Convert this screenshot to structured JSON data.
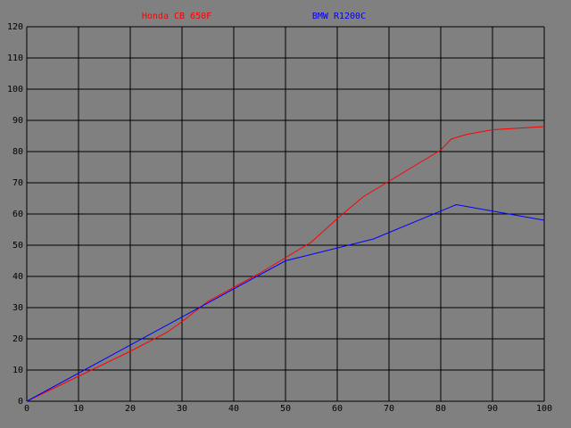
{
  "chart_data": {
    "type": "line",
    "series": [
      {
        "name": "Honda CB 650F",
        "color": "#ff0000",
        "x": [
          0,
          10,
          20,
          27,
          30,
          35,
          40,
          45,
          50,
          55,
          60,
          65,
          70,
          75,
          80,
          82,
          85,
          90,
          95,
          100
        ],
        "values": [
          0,
          8,
          16,
          22,
          25.5,
          32,
          36.5,
          41,
          46,
          51,
          58.5,
          65.5,
          70.5,
          75.5,
          80.5,
          84,
          85.5,
          87,
          87.5,
          88
        ]
      },
      {
        "name": "BMW R1200C",
        "color": "#0000ff",
        "x": [
          0,
          50,
          67,
          83,
          100
        ],
        "values": [
          0,
          45,
          52,
          63,
          58
        ]
      }
    ],
    "xlim": [
      0,
      100
    ],
    "xticks": [
      0,
      10,
      20,
      30,
      40,
      50,
      60,
      70,
      80,
      90,
      100
    ],
    "ylim": [
      0,
      120
    ],
    "yticks": [
      0,
      10,
      20,
      30,
      40,
      50,
      60,
      70,
      80,
      90,
      100,
      110,
      120
    ],
    "grid": true
  }
}
